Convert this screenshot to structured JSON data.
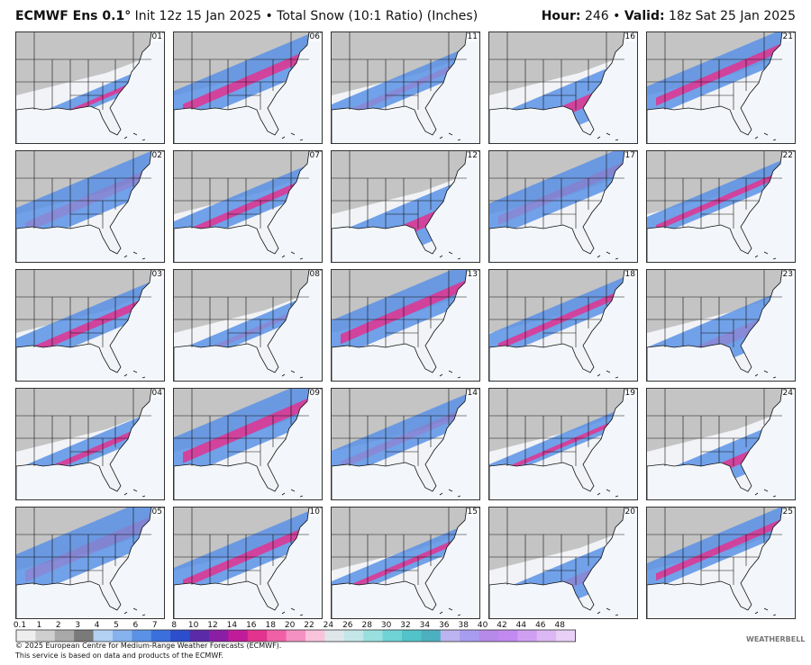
{
  "header": {
    "model": "ECMWF Ens 0.1°",
    "init": "Init 12z 15 Jan 2025 • Total Snow (10:1 Ratio) (Inches)",
    "hour_label": "Hour:",
    "hour": "246 •",
    "valid_label": "Valid:",
    "valid": "18z Sat 25 Jan 2025"
  },
  "members": [
    "01",
    "02",
    "03",
    "04",
    "05",
    "06",
    "07",
    "08",
    "09",
    "10",
    "11",
    "12",
    "13",
    "14",
    "15",
    "16",
    "17",
    "18",
    "19",
    "20",
    "21",
    "22",
    "23",
    "24",
    "25"
  ],
  "colorbar": {
    "labels": [
      "0.1",
      "1",
      "2",
      "3",
      "4",
      "5",
      "6",
      "7",
      "8",
      "10",
      "12",
      "14",
      "16",
      "18",
      "20",
      "22",
      "24",
      "26",
      "28",
      "30",
      "32",
      "34",
      "36",
      "38",
      "40",
      "42",
      "44",
      "46",
      "48"
    ],
    "colors": [
      "#eeeeee",
      "#cfcfcf",
      "#a9a9a9",
      "#7a7a7a",
      "#b3d1f3",
      "#86b2ee",
      "#5b92e6",
      "#3a6fdc",
      "#2c4dcc",
      "#5a2aa8",
      "#8a1fa6",
      "#c01c9a",
      "#e2338f",
      "#f060a6",
      "#f591c2",
      "#f9c3dc",
      "#dfe6ea",
      "#c4e6e8",
      "#9adfe0",
      "#6fd3d6",
      "#52c3c8",
      "#4db0c0",
      "#bcb4f0",
      "#a89cf0",
      "#b68ae8",
      "#c28af0",
      "#cfa0f2",
      "#dbb8f4",
      "#e8d0f6"
    ]
  },
  "footer": {
    "copyright": "© 2025 European Centre for Medium-Range Weather Forecasts (ECMWF).",
    "note": "This service is based on data and products of the ECMWF.",
    "logo": "WEATHERBELL"
  }
}
